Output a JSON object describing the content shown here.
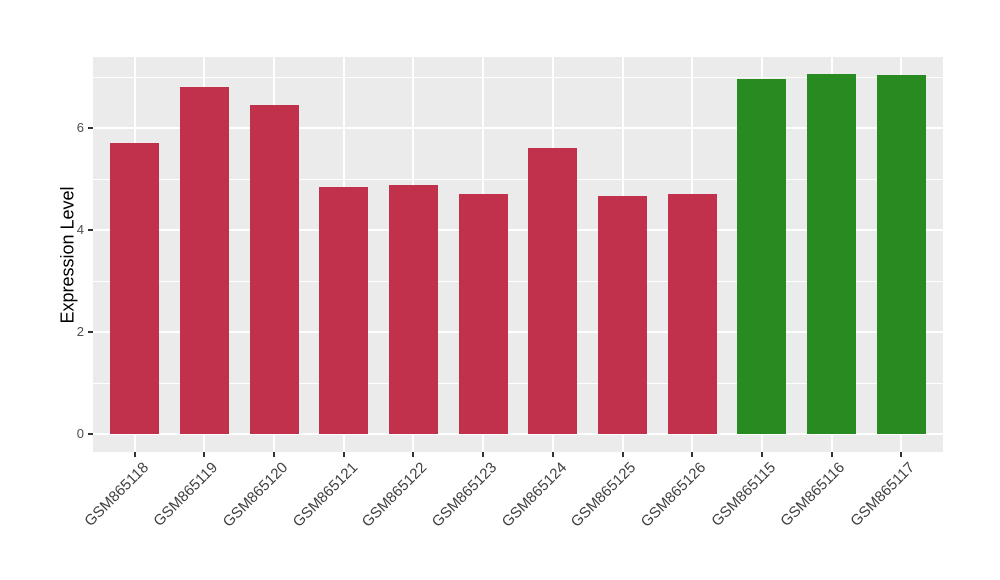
{
  "chart_data": {
    "type": "bar",
    "title": "",
    "xlabel": "",
    "ylabel": "Expression Level",
    "categories": [
      "GSM865118",
      "GSM865119",
      "GSM865120",
      "GSM865121",
      "GSM865122",
      "GSM865123",
      "GSM865124",
      "GSM865125",
      "GSM865126",
      "GSM865115",
      "GSM865116",
      "GSM865117"
    ],
    "values": [
      5.71,
      6.82,
      6.46,
      4.85,
      4.89,
      4.72,
      5.62,
      4.68,
      4.72,
      6.96,
      7.06,
      7.04
    ],
    "bar_color_keys": [
      "red",
      "red",
      "red",
      "red",
      "red",
      "red",
      "red",
      "red",
      "red",
      "green",
      "green",
      "green"
    ],
    "colors": {
      "red": "#C2314B",
      "green": "#288B22",
      "panel_background": "#EBEBEB",
      "gridline": "#FFFFFF",
      "axis_text": "#4D4D4D",
      "tick_mark": "#333333"
    },
    "ylim": [
      0,
      7.4
    ],
    "yticks_major": [
      0,
      2,
      4,
      6
    ],
    "yticks_minor": [
      1,
      3,
      5,
      7
    ],
    "grid": "on",
    "legend_position": "none"
  }
}
